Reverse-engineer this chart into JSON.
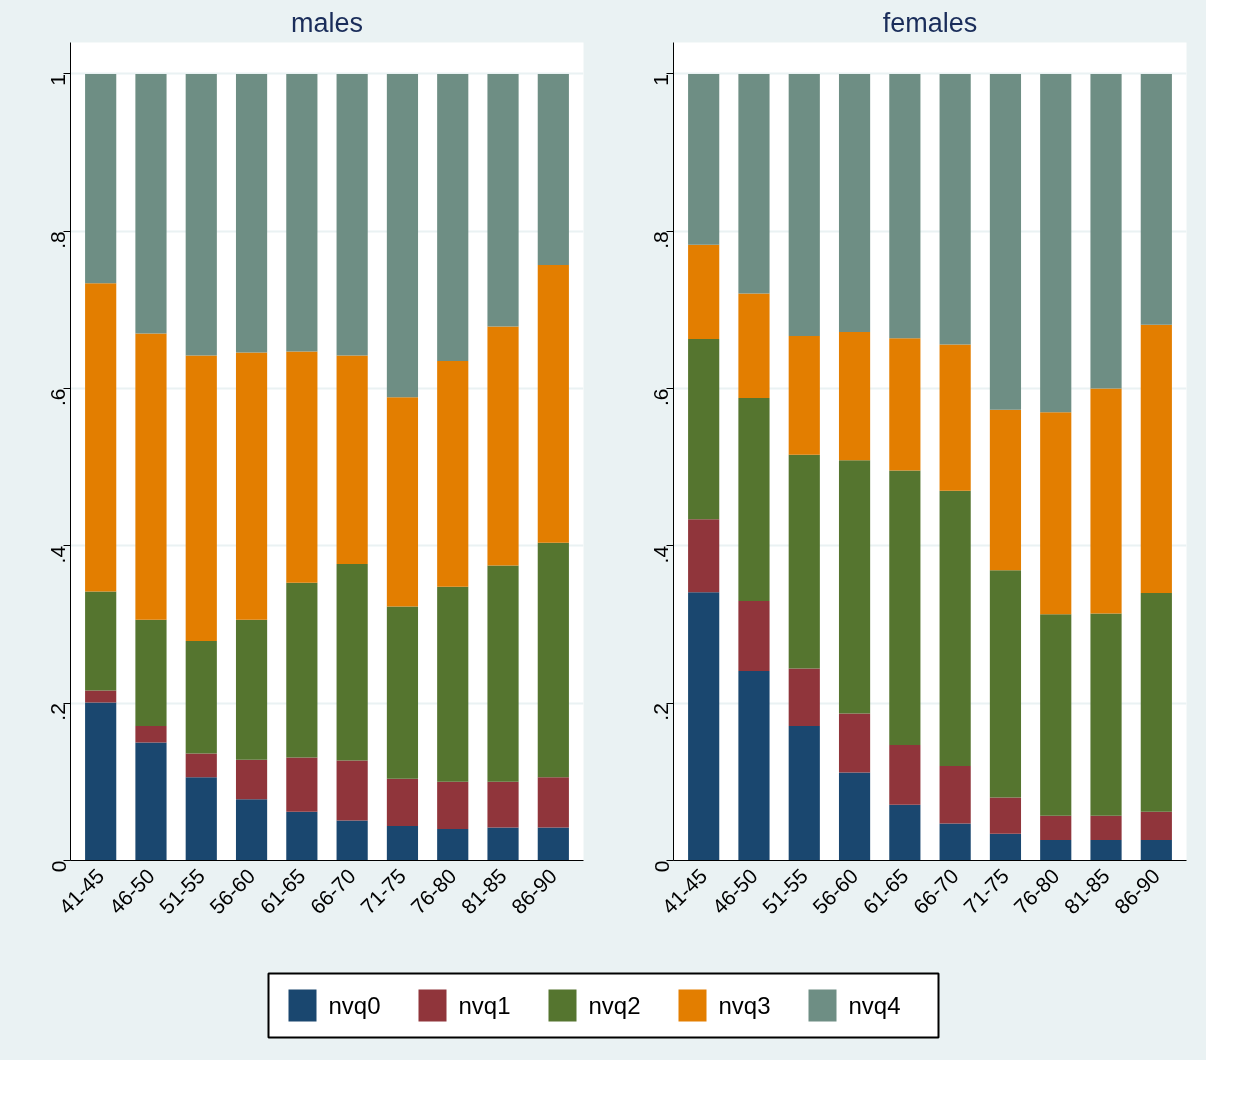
{
  "chart_data": [
    {
      "type": "bar",
      "stacked": true,
      "title": "males",
      "categories": [
        "41-45",
        "46-50",
        "51-55",
        "56-60",
        "61-65",
        "66-70",
        "71-75",
        "76-80",
        "81-85",
        "86-90"
      ],
      "ylim": [
        0,
        1.04
      ],
      "yticks": [
        0,
        {
          "value": 0.2,
          "label": ".2"
        },
        {
          "value": 0.4,
          "label": ".4"
        },
        {
          "value": 0.6,
          "label": ".6"
        },
        {
          "value": 0.8,
          "label": ".8"
        },
        1
      ],
      "grid": "y",
      "legend": "bottom",
      "series": [
        {
          "name": "nvq0",
          "color": "#1a476f",
          "values": [
            0.201,
            0.15,
            0.106,
            0.078,
            0.062,
            0.051,
            0.044,
            0.04,
            0.042,
            0.042
          ]
        },
        {
          "name": "nvq1",
          "color": "#90353b",
          "values": [
            0.015,
            0.021,
            0.03,
            0.05,
            0.069,
            0.076,
            0.06,
            0.06,
            0.058,
            0.064
          ]
        },
        {
          "name": "nvq2",
          "color": "#55752f",
          "values": [
            0.126,
            0.135,
            0.143,
            0.178,
            0.222,
            0.25,
            0.219,
            0.248,
            0.275,
            0.298
          ]
        },
        {
          "name": "nvq3",
          "color": "#e37e00",
          "values": [
            0.392,
            0.364,
            0.363,
            0.34,
            0.294,
            0.265,
            0.266,
            0.287,
            0.304,
            0.353
          ]
        },
        {
          "name": "nvq4",
          "color": "#6e8e84",
          "values": [
            0.266,
            0.33,
            0.358,
            0.354,
            0.353,
            0.358,
            0.411,
            0.365,
            0.321,
            0.243
          ]
        }
      ]
    },
    {
      "type": "bar",
      "stacked": true,
      "title": "females",
      "categories": [
        "41-45",
        "46-50",
        "51-55",
        "56-60",
        "61-65",
        "66-70",
        "71-75",
        "76-80",
        "81-85",
        "86-90"
      ],
      "ylim": [
        0,
        1.04
      ],
      "yticks": [
        0,
        {
          "value": 0.2,
          "label": ".2"
        },
        {
          "value": 0.4,
          "label": ".4"
        },
        {
          "value": 0.6,
          "label": ".6"
        },
        {
          "value": 0.8,
          "label": ".8"
        },
        1
      ],
      "grid": "y",
      "series": [
        {
          "color": "#1a476f",
          "values": [
            0.341,
            0.241,
            0.171,
            0.112,
            0.071,
            0.047,
            0.034,
            0.026,
            0.026,
            0.026
          ]
        },
        {
          "color": "#90353b",
          "values": [
            0.093,
            0.089,
            0.073,
            0.075,
            0.076,
            0.073,
            0.046,
            0.031,
            0.031,
            0.036
          ]
        },
        {
          "color": "#55752f",
          "values": [
            0.229,
            0.258,
            0.272,
            0.322,
            0.349,
            0.35,
            0.289,
            0.256,
            0.257,
            0.278
          ]
        },
        {
          "color": "#e37e00",
          "values": [
            0.12,
            0.133,
            0.151,
            0.163,
            0.168,
            0.186,
            0.204,
            0.257,
            0.286,
            0.341
          ]
        },
        {
          "color": "#6e8e84",
          "values": [
            0.217,
            0.279,
            0.333,
            0.328,
            0.336,
            0.344,
            0.427,
            0.43,
            0.4,
            0.319
          ]
        }
      ]
    }
  ]
}
